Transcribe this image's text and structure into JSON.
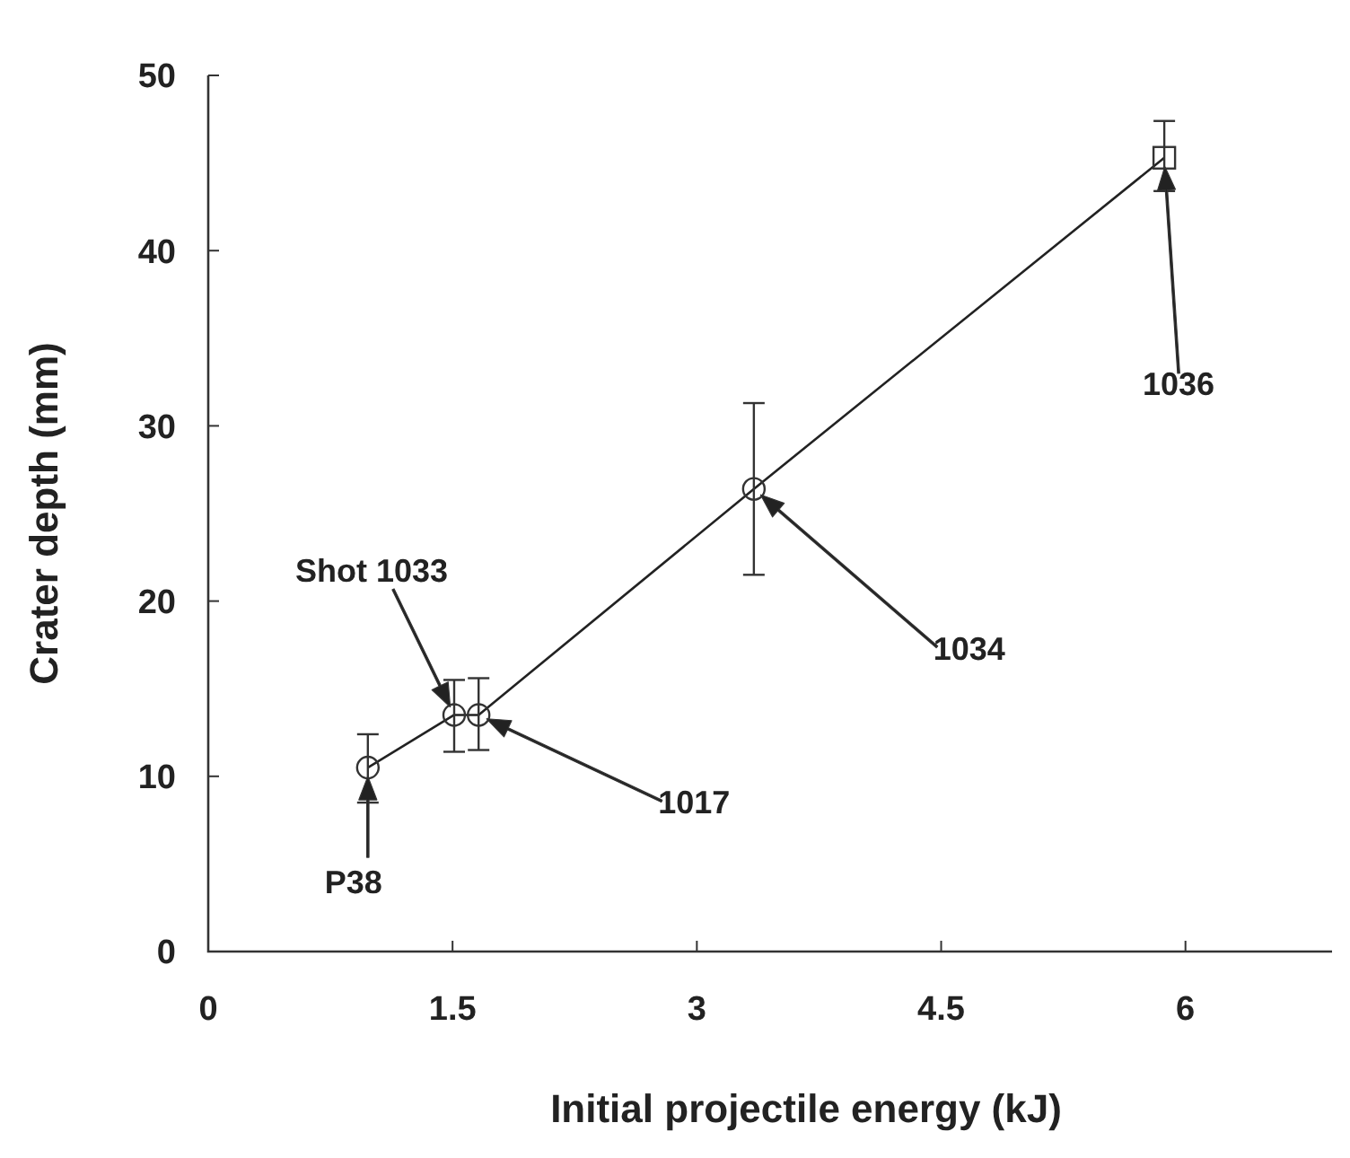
{
  "chart_data": {
    "type": "scatter",
    "xlabel": "Initial projectile energy (kJ)",
    "ylabel": "Crater depth (mm)",
    "xlim": [
      0,
      6.9
    ],
    "ylim": [
      0,
      50
    ],
    "xticks": [
      0,
      1.5,
      3,
      4.5,
      6
    ],
    "yticks": [
      0,
      10,
      20,
      30,
      40,
      50
    ],
    "series": [
      {
        "type": "line",
        "color": "#222222",
        "marker": "none",
        "line_style": "solid",
        "x": [
          0.98,
          1.51,
          1.66,
          3.35,
          5.87
        ],
        "values": [
          10.5,
          13.5,
          13.5,
          26.4,
          45.3
        ]
      },
      {
        "color": "#333333",
        "marker": "circle",
        "x": [
          0.98,
          1.51,
          1.66,
          3.35
        ],
        "values": [
          10.5,
          13.5,
          13.5,
          26.4
        ],
        "errors": [
          [
            8.5,
            12.4
          ],
          [
            11.4,
            15.5
          ],
          [
            11.5,
            15.6
          ],
          [
            21.5,
            31.3
          ]
        ]
      },
      {
        "color": "#333333",
        "marker": "square",
        "x": [
          5.87
        ],
        "values": [
          45.3
        ],
        "errors": [
          [
            43.4,
            47.4
          ]
        ]
      }
    ],
    "annotations": [
      "P38",
      "Shot 1033",
      "1017",
      "1034",
      "1036"
    ]
  }
}
